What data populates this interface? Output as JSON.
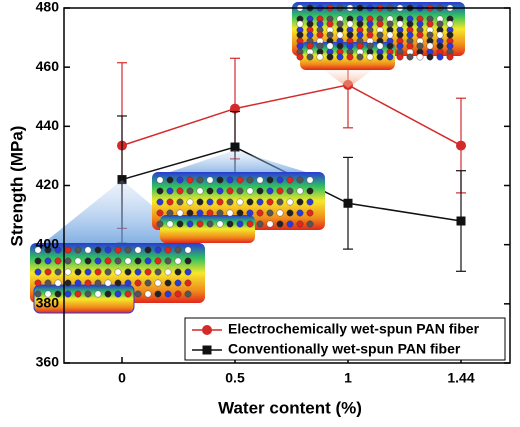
{
  "chart_data": {
    "type": "line",
    "x_label": "Water content (%)",
    "y_label": "Strength (MPa)",
    "categories": [
      "0",
      "0.5",
      "1",
      "1.44"
    ],
    "ylim": [
      360,
      480
    ],
    "yticks": [
      360,
      380,
      400,
      420,
      440,
      460,
      480
    ],
    "legend": "bottom-right",
    "series": [
      {
        "name": "Electrochemically wet-spun PAN fiber",
        "color": "#d42a2a",
        "marker": "circle",
        "values": [
          433.5,
          446,
          454,
          433.5
        ],
        "errors": [
          28,
          17,
          14.5,
          16
        ]
      },
      {
        "name": "Conventionally wet-spun PAN fiber",
        "color": "#111111",
        "marker": "square",
        "values": [
          422,
          433,
          414,
          408
        ],
        "errors": [
          21.5,
          12,
          15.5,
          17
        ]
      }
    ]
  }
}
